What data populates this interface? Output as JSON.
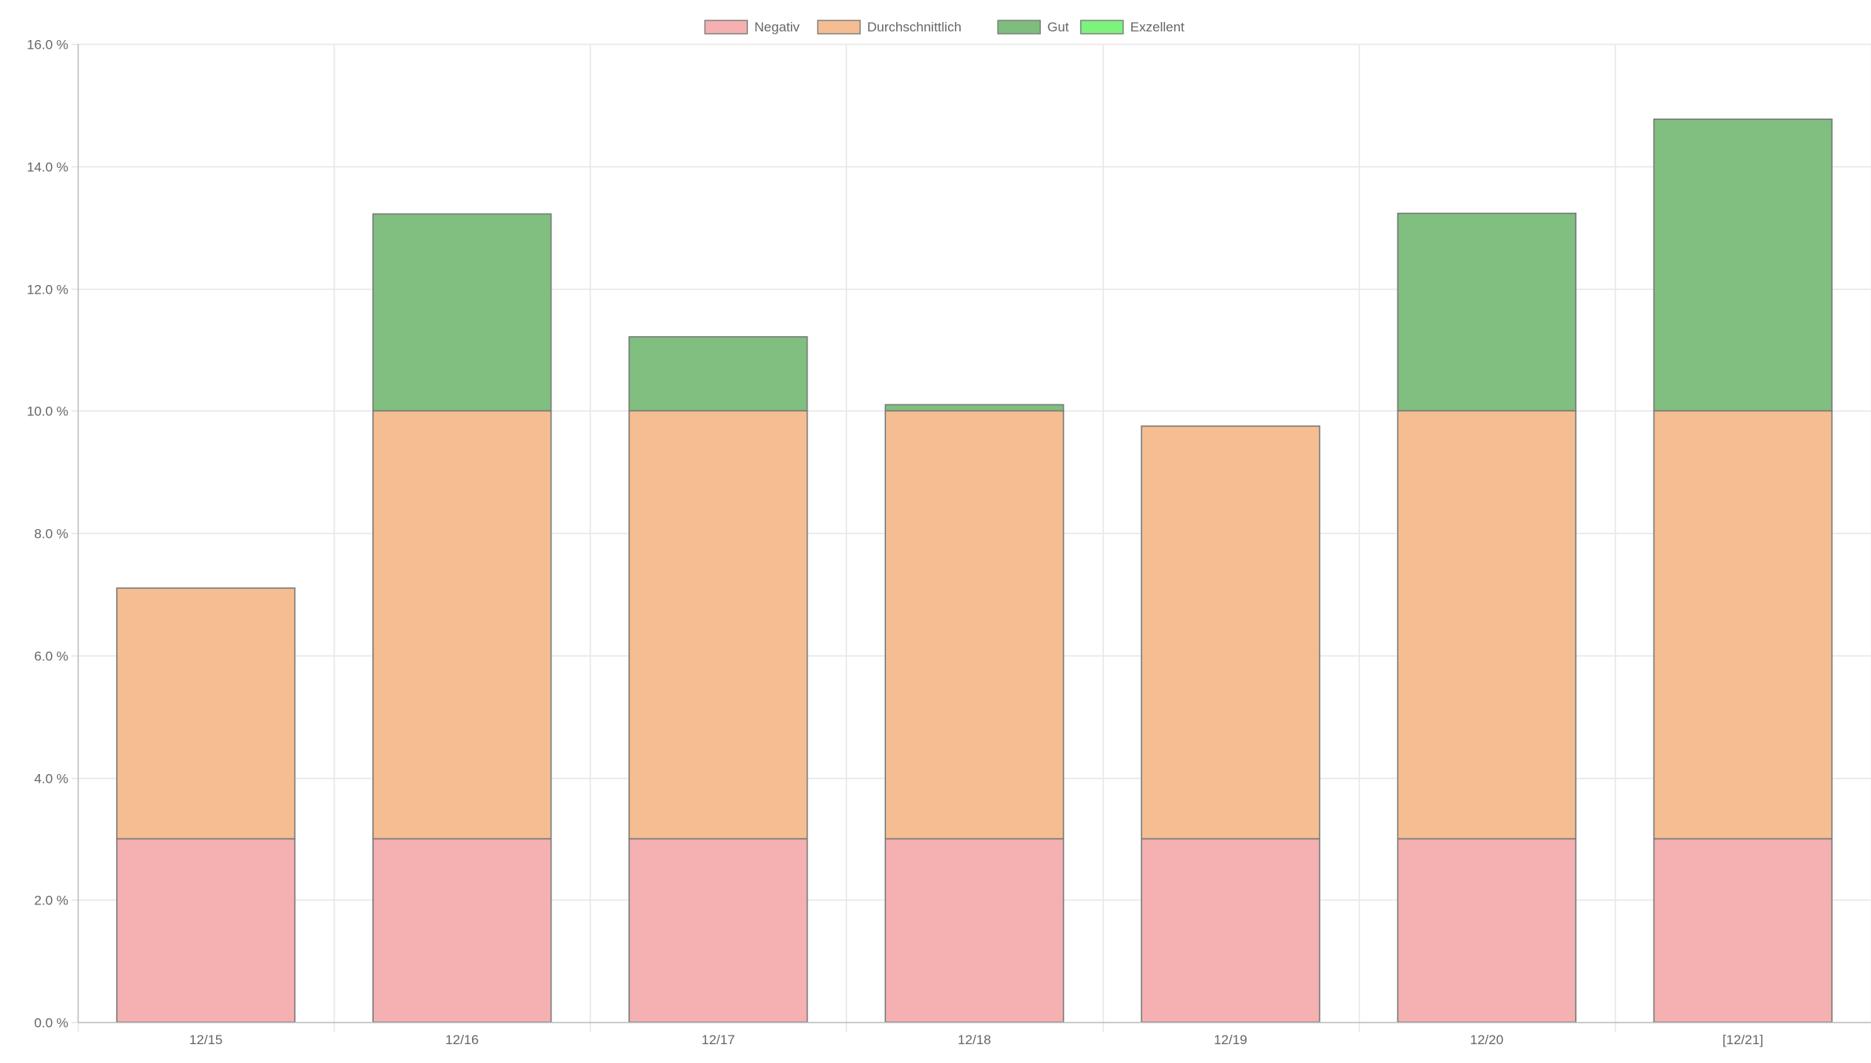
{
  "chart_data": {
    "type": "bar",
    "stacked": true,
    "categories": [
      "12/15",
      "12/16",
      "12/17",
      "12/18",
      "12/19",
      "12/20",
      "[12/21]"
    ],
    "series": [
      {
        "name": "Negativ",
        "values": [
          3.0,
          3.0,
          3.0,
          3.0,
          3.0,
          3.0,
          3.0
        ],
        "fill": "#f5b1b1",
        "swatch": "#f5b1b1"
      },
      {
        "name": "Durchschnittlich",
        "values": [
          4.1,
          7.0,
          7.0,
          7.0,
          6.75,
          7.0,
          7.0
        ],
        "fill": "#f5be92",
        "swatch": "#f5be92"
      },
      {
        "name": "Gut",
        "values": [
          0.0,
          3.22,
          1.21,
          0.1,
          0.0,
          3.23,
          4.77
        ],
        "fill": "#80bf7f",
        "swatch": "#7fbd7e"
      },
      {
        "name": "Exzellent",
        "values": [
          0,
          0,
          0,
          0,
          0,
          0,
          0
        ],
        "fill": "#7df27d",
        "swatch": "#7df27d"
      }
    ],
    "ylim": [
      0,
      16
    ],
    "yticks": [
      0,
      2,
      4,
      6,
      8,
      10,
      12,
      14,
      16
    ],
    "y_tick_labels": [
      "0.0 %",
      "2.0 %",
      "4.0 %",
      "6.0 %",
      "8.0 %",
      "10.0 %",
      "12.0 %",
      "14.0 %",
      "16.0 %"
    ],
    "grid": true,
    "legend_position": "top-center",
    "colors": {
      "bar_border": "#7a7a7a",
      "grid": "#e6e6e6",
      "axis": "#bdbdbd",
      "tick_text": "#666666"
    }
  }
}
